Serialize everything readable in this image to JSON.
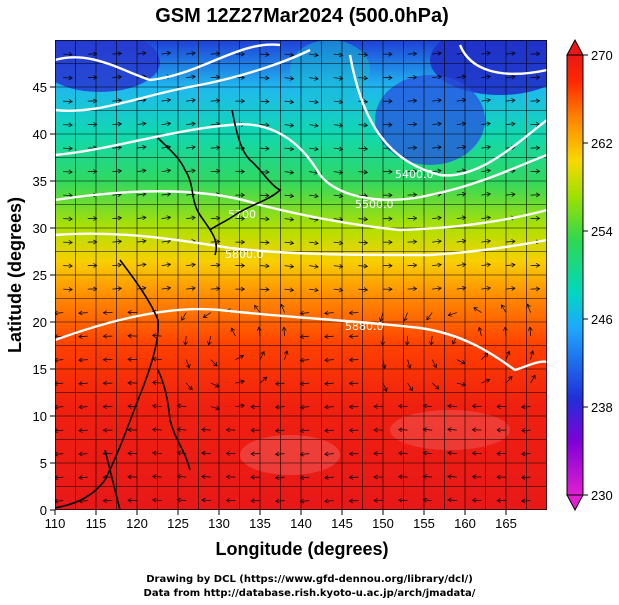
{
  "title": "GSM 12Z27Mar2024 (500.0hPa)",
  "x_axis": {
    "label": "Longitude (degrees)",
    "range": [
      110,
      170
    ],
    "ticks": [
      "110",
      "115",
      "120",
      "125",
      "130",
      "135",
      "140",
      "145",
      "150",
      "155",
      "160",
      "165"
    ]
  },
  "y_axis": {
    "label": "Latitude  (degrees)",
    "range": [
      0,
      50
    ],
    "ticks": [
      "0",
      "5",
      "10",
      "15",
      "20",
      "25",
      "30",
      "35",
      "40",
      "45"
    ]
  },
  "colorbar": {
    "range": [
      230,
      270
    ],
    "ticks": [
      "230",
      "238",
      "246",
      "254",
      "262",
      "270"
    ],
    "colors": [
      "#e000c8",
      "#8000e0",
      "#2030d8",
      "#1ea8ff",
      "#00d8c0",
      "#30d850",
      "#a0e000",
      "#f8d800",
      "#ff8000",
      "#ff2000",
      "#e81818"
    ]
  },
  "contours": {
    "color": "#ffffff",
    "labels": [
      "5400.0",
      "5500.0",
      "5700",
      "5800.0",
      "5880.0"
    ]
  },
  "credits": {
    "line1": "Drawing by DCL (https://www.gfd-dennou.org/library/dcl/)",
    "line2": "Data from http://database.rish.kyoto-u.ac.jp/arch/jmadata/"
  }
}
